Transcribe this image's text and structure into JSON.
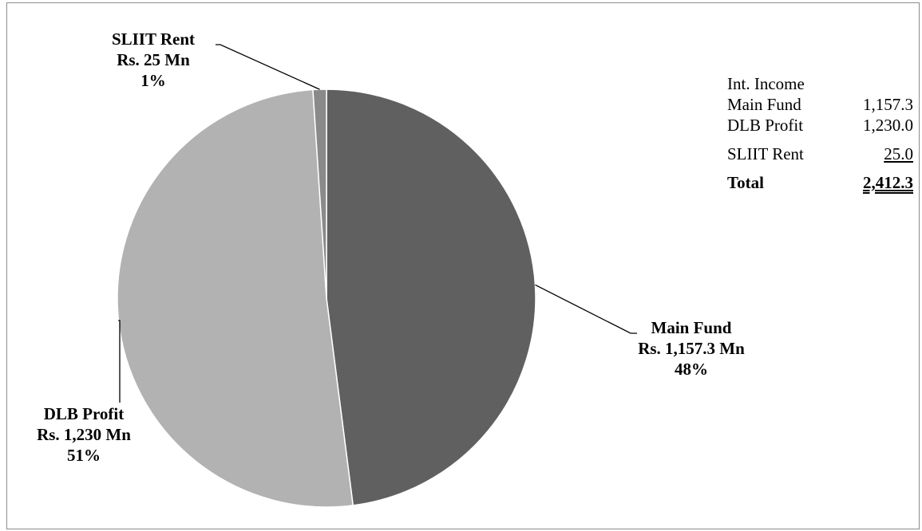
{
  "chart_data": {
    "type": "pie",
    "title": "",
    "slices": [
      {
        "name": "Main Fund",
        "amount_text": "Rs. 1,157.3 Mn",
        "value": 1157.3,
        "percent": "48%",
        "color": "#606060"
      },
      {
        "name": "DLB Profit",
        "amount_text": "Rs. 1,230 Mn",
        "value": 1230.0,
        "percent": "51%",
        "color": "#b2b2b2"
      },
      {
        "name": "SLIIT Rent",
        "amount_text": "Rs. 25 Mn",
        "value": 25.0,
        "percent": "1%",
        "color": "#8a8a8a"
      }
    ],
    "start_angle": "12 o'clock",
    "direction": "clockwise",
    "legend": "none",
    "slice_stroke_color": "#ffffff"
  },
  "summary_table": {
    "header": "Int. Income",
    "rows": [
      {
        "label": "Main Fund",
        "value": "1,157.3"
      },
      {
        "label": "DLB Profit",
        "value": "1,230.0"
      },
      {
        "label": "SLIIT Rent",
        "value": "25.0"
      }
    ],
    "total_label": "Total",
    "total_value": "2,412.3"
  }
}
